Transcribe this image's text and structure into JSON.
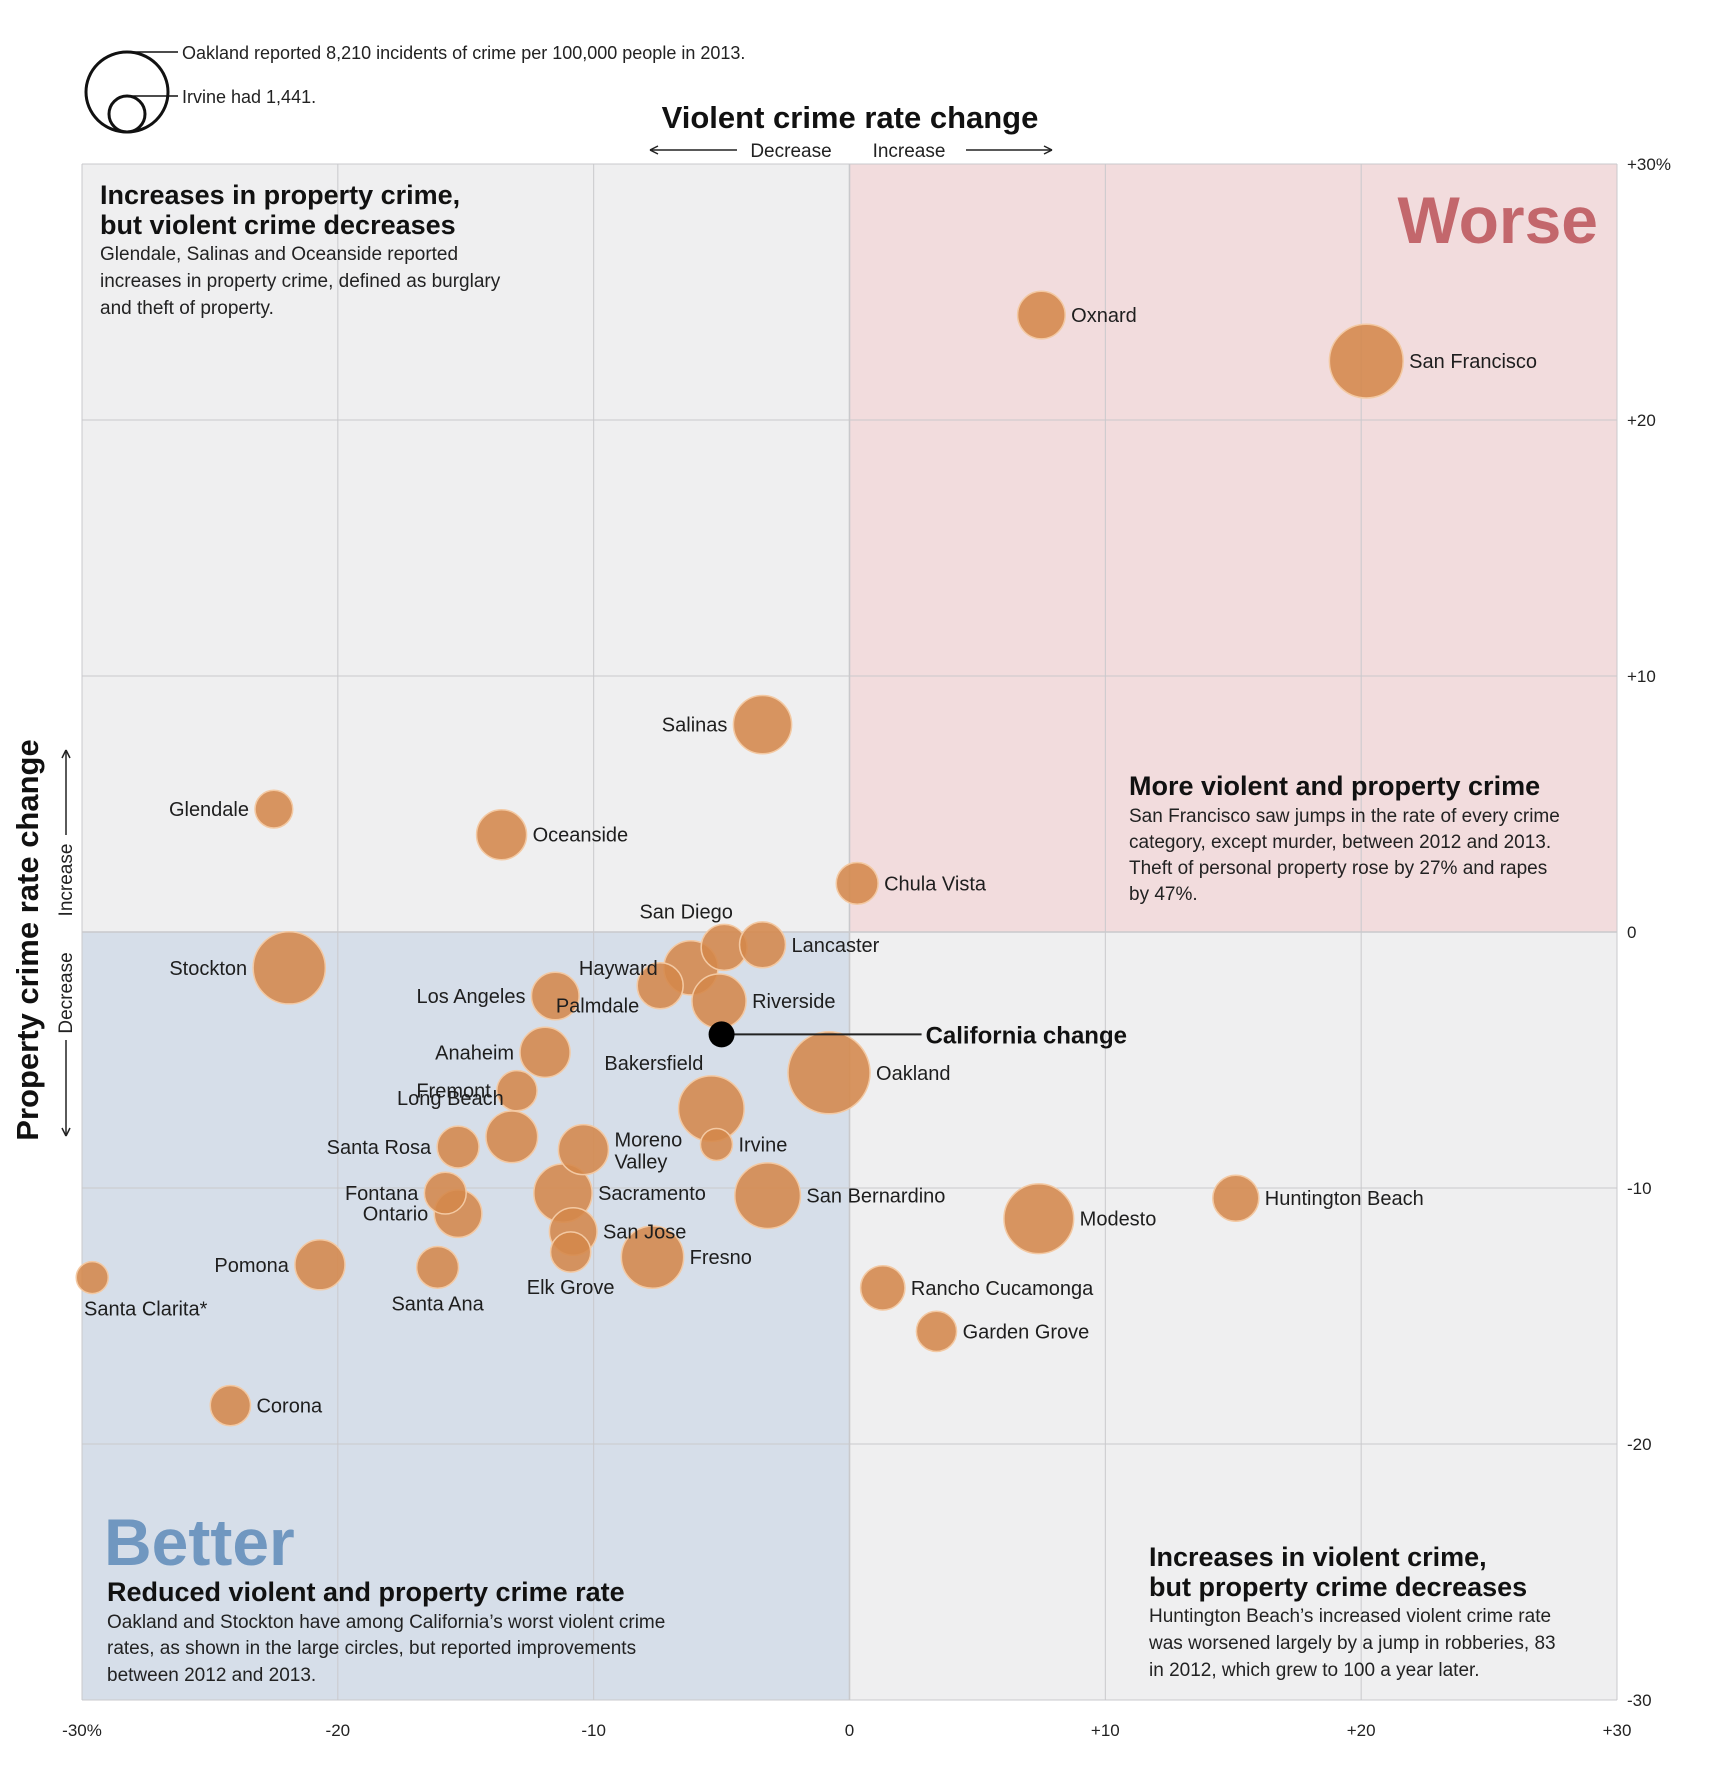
{
  "colors": {
    "bubble": "#d4874b",
    "bubble_stroke": "#f3c9a3",
    "worse_bg": "#f2dcdd",
    "better_bg": "#d6dee9",
    "neutral_bg": "#efeff0",
    "grid": "#c9c9cc",
    "worse_text": "#c3676c",
    "better_text": "#7097c0",
    "california": "#000000"
  },
  "legend": {
    "large_note": "Oakland reported 8,210 incidents of crime per 100,000 people in 2013.",
    "small_note": "Irvine had 1,441."
  },
  "quadrants": {
    "top_left": {
      "heading_line1": "Increases in property crime,",
      "heading_line2": "but violent crime decreases",
      "body_line1": "Glendale, Salinas and Oceanside reported",
      "body_line2": "increases in property crime, defined as burglary",
      "body_line3": "and theft of property."
    },
    "top_right": {
      "big_label": "Worse",
      "heading_line1": "More violent and property crime",
      "body_line1": "San Francisco saw jumps in the rate of every crime",
      "body_line2": "category, except murder, between 2012 and 2013.",
      "body_line3": "Theft of personal property rose by 27% and rapes",
      "body_line4": "by 47%."
    },
    "bottom_left": {
      "big_label": "Better",
      "heading_line1": "Reduced violent and property crime rate",
      "body_line1": "Oakland and Stockton have among California’s worst violent crime",
      "body_line2": "rates, as shown in the large circles, but reported improvements",
      "body_line3": "between 2012 and 2013."
    },
    "bottom_right": {
      "heading_line1": "Increases in violent crime,",
      "heading_line2": "but property crime decreases",
      "body_line1": "Huntington Beach’s increased violent crime rate",
      "body_line2": "was worsened largely by a jump in robberies, 83",
      "body_line3": "in 2012, which grew to 100 a year later."
    }
  },
  "chart_data": {
    "type": "scatter",
    "title": "Violent crime rate change",
    "xlabel": "Violent crime rate change",
    "ylabel": "Property crime rate change",
    "x_direction": {
      "decrease": "Decrease",
      "increase": "Increase"
    },
    "y_direction": {
      "decrease": "Decrease",
      "increase": "Increase"
    },
    "xlim": [
      -30,
      30
    ],
    "ylim": [
      -30,
      30
    ],
    "grid": true,
    "x_ticks": [
      {
        "value": -30,
        "label": "-30%"
      },
      {
        "value": -20,
        "label": "-20"
      },
      {
        "value": -10,
        "label": "-10"
      },
      {
        "value": 0,
        "label": "0"
      },
      {
        "value": 10,
        "label": "+10"
      },
      {
        "value": 20,
        "label": "+20"
      },
      {
        "value": 30,
        "label": "+30"
      }
    ],
    "y_ticks": [
      {
        "value": 30,
        "label": "+30%"
      },
      {
        "value": 20,
        "label": "+20"
      },
      {
        "value": 10,
        "label": "+10"
      },
      {
        "value": 0,
        "label": "0"
      },
      {
        "value": -10,
        "label": "-10"
      },
      {
        "value": -20,
        "label": "-20"
      },
      {
        "value": -30,
        "label": "-30"
      }
    ],
    "size_note": "Bubble area = total crime rate per 100,000 people in 2013",
    "reference_point": {
      "name": "California change",
      "x": -5.0,
      "y": -4.0
    },
    "points": [
      {
        "name": "Oxnard",
        "x": 7.5,
        "y": 24.1,
        "size": 0.58,
        "label_pos": "right"
      },
      {
        "name": "San Francisco",
        "x": 20.2,
        "y": 22.3,
        "size": 0.9,
        "label_pos": "right"
      },
      {
        "name": "Salinas",
        "x": -3.4,
        "y": 8.1,
        "size": 0.71,
        "label_pos": "left"
      },
      {
        "name": "Glendale",
        "x": -22.5,
        "y": 4.8,
        "size": 0.46,
        "label_pos": "left"
      },
      {
        "name": "Oceanside",
        "x": -13.6,
        "y": 3.8,
        "size": 0.61,
        "label_pos": "right"
      },
      {
        "name": "Chula Vista",
        "x": 0.3,
        "y": 1.9,
        "size": 0.51,
        "label_pos": "right"
      },
      {
        "name": "Stockton",
        "x": -21.9,
        "y": -1.4,
        "size": 0.88,
        "label_pos": "left"
      },
      {
        "name": "San Diego",
        "x": -4.9,
        "y": -0.6,
        "size": 0.56,
        "label_pos": "top-left"
      },
      {
        "name": "Lancaster",
        "x": -3.4,
        "y": -0.5,
        "size": 0.56,
        "label_pos": "right"
      },
      {
        "name": "Hayward",
        "x": -6.2,
        "y": -1.4,
        "size": 0.66,
        "label_pos": "left"
      },
      {
        "name": "Los Angeles",
        "x": -11.5,
        "y": -2.5,
        "size": 0.58,
        "label_pos": "left"
      },
      {
        "name": "Palmdale",
        "x": -7.4,
        "y": -2.1,
        "size": 0.56,
        "label_pos": "bottom-left"
      },
      {
        "name": "Riverside",
        "x": -5.1,
        "y": -2.7,
        "size": 0.66,
        "label_pos": "right"
      },
      {
        "name": "Anaheim",
        "x": -11.9,
        "y": -4.7,
        "size": 0.61,
        "label_pos": "left"
      },
      {
        "name": "Oakland",
        "x": -0.8,
        "y": -5.5,
        "size": 1.0,
        "label_pos": "right"
      },
      {
        "name": "Bakersfield",
        "x": -5.4,
        "y": -6.9,
        "size": 0.8,
        "label_pos": "top-left"
      },
      {
        "name": "Fremont",
        "x": -13.0,
        "y": -6.2,
        "size": 0.49,
        "label_pos": "left"
      },
      {
        "name": "Long Beach",
        "x": -13.2,
        "y": -8.0,
        "size": 0.63,
        "label_pos": "top-left"
      },
      {
        "name": "Santa Rosa",
        "x": -15.3,
        "y": -8.4,
        "size": 0.51,
        "label_pos": "left"
      },
      {
        "name": "Irvine",
        "x": -5.2,
        "y": -8.3,
        "size": 0.39,
        "label_pos": "right"
      },
      {
        "name": "Moreno Valley",
        "x": -10.4,
        "y": -8.5,
        "size": 0.61,
        "label_pos": "right"
      },
      {
        "name": "Fontana",
        "x": -15.8,
        "y": -10.2,
        "size": 0.51,
        "label_pos": "left"
      },
      {
        "name": "Ontario",
        "x": -15.3,
        "y": -11.0,
        "size": 0.58,
        "label_pos": "left"
      },
      {
        "name": "Sacramento",
        "x": -11.2,
        "y": -10.2,
        "size": 0.71,
        "label_pos": "right"
      },
      {
        "name": "San Jose",
        "x": -10.8,
        "y": -11.7,
        "size": 0.58,
        "label_pos": "right"
      },
      {
        "name": "Elk Grove",
        "x": -10.9,
        "y": -12.5,
        "size": 0.49,
        "label_pos": "bottom"
      },
      {
        "name": "San Bernardino",
        "x": -3.2,
        "y": -10.3,
        "size": 0.8,
        "label_pos": "right"
      },
      {
        "name": "Fresno",
        "x": -7.7,
        "y": -12.7,
        "size": 0.76,
        "label_pos": "right"
      },
      {
        "name": "Santa Ana",
        "x": -16.1,
        "y": -13.1,
        "size": 0.51,
        "label_pos": "bottom"
      },
      {
        "name": "Pomona",
        "x": -20.7,
        "y": -13.0,
        "size": 0.61,
        "label_pos": "left"
      },
      {
        "name": "Santa Clarita*",
        "x": -29.6,
        "y": -13.5,
        "size": 0.39,
        "label_pos": "bottom"
      },
      {
        "name": "Corona",
        "x": -24.2,
        "y": -18.5,
        "size": 0.49,
        "label_pos": "right"
      },
      {
        "name": "Modesto",
        "x": 7.4,
        "y": -11.2,
        "size": 0.85,
        "label_pos": "right"
      },
      {
        "name": "Huntington Beach",
        "x": 15.1,
        "y": -10.4,
        "size": 0.56,
        "label_pos": "right"
      },
      {
        "name": "Rancho Cucamonga",
        "x": 1.3,
        "y": -13.9,
        "size": 0.54,
        "label_pos": "right"
      },
      {
        "name": "Garden Grove",
        "x": 3.4,
        "y": -15.6,
        "size": 0.49,
        "label_pos": "right"
      }
    ]
  }
}
